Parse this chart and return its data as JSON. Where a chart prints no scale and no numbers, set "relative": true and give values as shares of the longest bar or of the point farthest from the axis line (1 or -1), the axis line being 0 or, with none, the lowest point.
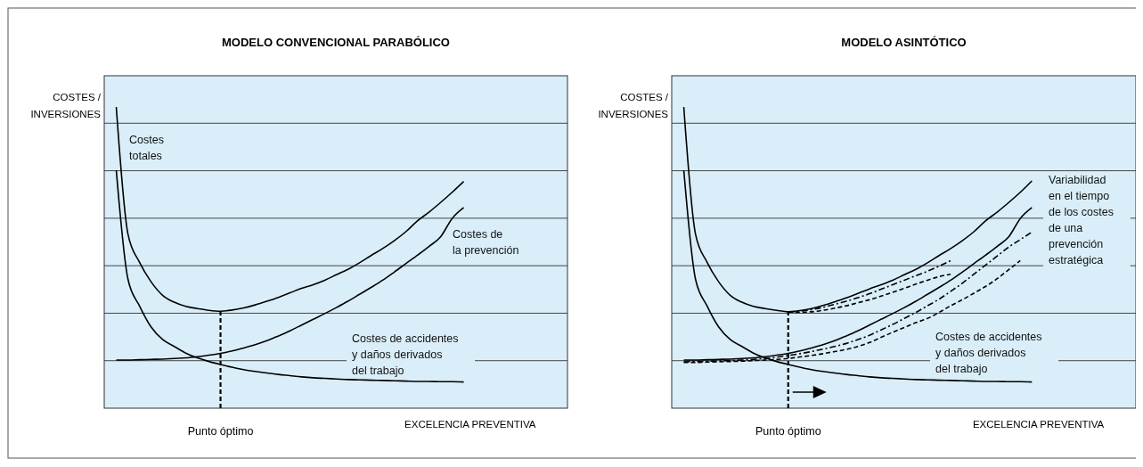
{
  "chart_data": [
    {
      "type": "line",
      "title": "MODELO CONVENCIONAL PARABÓLICO",
      "xlabel": "EXCELENCIA PREVENTIVA",
      "ylabel": "COSTES /\nINVERSIONES",
      "relative": true,
      "grid": true,
      "categories": [
        null,
        null,
        null,
        null,
        null,
        null,
        null,
        null,
        null,
        null,
        null,
        null,
        null,
        null,
        null,
        null,
        null,
        null,
        null,
        null,
        null,
        null,
        null,
        null,
        null,
        null,
        null,
        null,
        null,
        null,
        null
      ],
      "series": [
        {
          "color": "#000000",
          "line_style": "solid",
          "values": [
            1.0,
            0.58,
            0.485,
            0.42,
            0.375,
            0.352,
            0.338,
            0.331,
            0.325,
            0.322,
            0.326,
            0.333,
            0.343,
            0.355,
            0.368,
            0.383,
            0.398,
            0.41,
            0.425,
            0.443,
            0.461,
            0.483,
            0.507,
            0.53,
            0.556,
            0.586,
            0.622,
            0.651,
            0.683,
            0.717,
            0.753
          ]
        },
        {
          "color": "#000000",
          "line_style": "solid",
          "values": [
            0.16,
            0.16,
            0.161,
            0.162,
            0.163,
            0.165,
            0.167,
            0.171,
            0.176,
            0.182,
            0.19,
            0.2,
            0.211,
            0.224,
            0.24,
            0.257,
            0.276,
            0.295,
            0.314,
            0.334,
            0.355,
            0.378,
            0.401,
            0.425,
            0.452,
            0.48,
            0.508,
            0.537,
            0.569,
            0.63,
            0.666
          ]
        },
        {
          "color": "#000000",
          "line_style": "solid",
          "values": [
            0.79,
            0.43,
            0.34,
            0.27,
            0.228,
            0.205,
            0.183,
            0.167,
            0.155,
            0.145,
            0.136,
            0.128,
            0.122,
            0.117,
            0.112,
            0.108,
            0.104,
            0.101,
            0.099,
            0.097,
            0.095,
            0.094,
            0.093,
            0.092,
            0.091,
            0.09,
            0.089,
            0.089,
            0.088,
            0.088,
            0.087
          ]
        }
      ],
      "annotations": [
        "Costes\ntotales",
        "Costes de\nla prevención",
        "Costes de accidentes\ny daños derivados\ndel trabajo",
        "Punto óptimo"
      ]
    },
    {
      "type": "line",
      "title": "MODELO ASINTÓTICO",
      "xlabel": "EXCELENCIA PREVENTIVA",
      "ylabel": "COSTES /\nINVERSIONES",
      "relative": true,
      "grid": true,
      "categories": [
        null,
        null,
        null,
        null,
        null,
        null,
        null,
        null,
        null,
        null,
        null,
        null,
        null,
        null,
        null,
        null,
        null,
        null,
        null,
        null,
        null,
        null,
        null,
        null,
        null,
        null,
        null,
        null,
        null,
        null,
        null
      ],
      "series": [
        {
          "color": "#000000",
          "line_style": "solid",
          "values": [
            1.0,
            0.58,
            0.485,
            0.42,
            0.375,
            0.352,
            0.338,
            0.331,
            0.325,
            0.32,
            0.324,
            0.331,
            0.341,
            0.353,
            0.366,
            0.381,
            0.396,
            0.41,
            0.425,
            0.443,
            0.461,
            0.483,
            0.507,
            0.53,
            0.556,
            0.586,
            0.622,
            0.651,
            0.683,
            0.717,
            0.755
          ]
        },
        {
          "color": "#000000",
          "line_style": "dashdot",
          "values": [
            null,
            null,
            null,
            null,
            null,
            null,
            null,
            null,
            null,
            0.32,
            0.322,
            0.327,
            0.335,
            0.345,
            0.355,
            0.367,
            0.38,
            0.395,
            0.41,
            0.425,
            0.44,
            0.455,
            0.472,
            0.49,
            null,
            null,
            null,
            null,
            null,
            null,
            null
          ]
        },
        {
          "color": "#000000",
          "line_style": "dashed",
          "values": [
            null,
            null,
            null,
            null,
            null,
            null,
            null,
            null,
            null,
            0.32,
            0.318,
            0.32,
            0.325,
            0.332,
            0.34,
            0.35,
            0.36,
            0.372,
            0.385,
            0.398,
            0.412,
            0.425,
            0.437,
            0.445,
            null,
            null,
            null,
            null,
            null,
            null,
            null
          ]
        },
        {
          "color": "#000000",
          "line_style": "solid",
          "values": [
            0.16,
            0.16,
            0.161,
            0.162,
            0.163,
            0.165,
            0.167,
            0.171,
            0.176,
            0.182,
            0.19,
            0.2,
            0.211,
            0.224,
            0.24,
            0.257,
            0.276,
            0.295,
            0.314,
            0.334,
            0.355,
            0.378,
            0.401,
            0.425,
            0.452,
            0.48,
            0.508,
            0.537,
            0.569,
            0.63,
            0.666
          ]
        },
        {
          "color": "#000000",
          "line_style": "dashdot",
          "values": [
            0.154,
            0.155,
            0.156,
            0.157,
            0.158,
            0.16,
            0.162,
            0.165,
            0.169,
            0.175,
            0.181,
            0.188,
            0.196,
            0.205,
            0.215,
            0.228,
            0.242,
            0.26,
            0.278,
            0.298,
            0.318,
            0.34,
            0.362,
            0.388,
            0.415,
            0.445,
            0.475,
            0.505,
            0.535,
            0.56,
            0.585
          ]
        },
        {
          "color": "#000000",
          "line_style": "dashed",
          "values": [
            0.152,
            0.152,
            0.153,
            0.154,
            0.155,
            0.156,
            0.158,
            0.16,
            0.162,
            0.165,
            0.17,
            0.175,
            0.181,
            0.188,
            0.195,
            0.205,
            0.218,
            0.235,
            0.252,
            0.268,
            0.284,
            0.298,
            0.318,
            0.34,
            0.36,
            0.382,
            0.404,
            0.43,
            0.46,
            0.49,
            null
          ]
        },
        {
          "color": "#000000",
          "line_style": "solid",
          "values": [
            0.79,
            0.43,
            0.34,
            0.27,
            0.228,
            0.205,
            0.183,
            0.167,
            0.155,
            0.145,
            0.136,
            0.128,
            0.122,
            0.117,
            0.112,
            0.108,
            0.104,
            0.101,
            0.099,
            0.097,
            0.095,
            0.094,
            0.093,
            0.092,
            0.091,
            0.09,
            0.089,
            0.089,
            0.088,
            0.088,
            0.087
          ]
        }
      ],
      "annotations": [
        "Costes de accidentes\ny daños derivados\ndel trabajo",
        "Variabilidad\nen el tiempo\nde los costes\nde una\nprevención\nestratégica",
        "Punto óptimo"
      ]
    }
  ]
}
